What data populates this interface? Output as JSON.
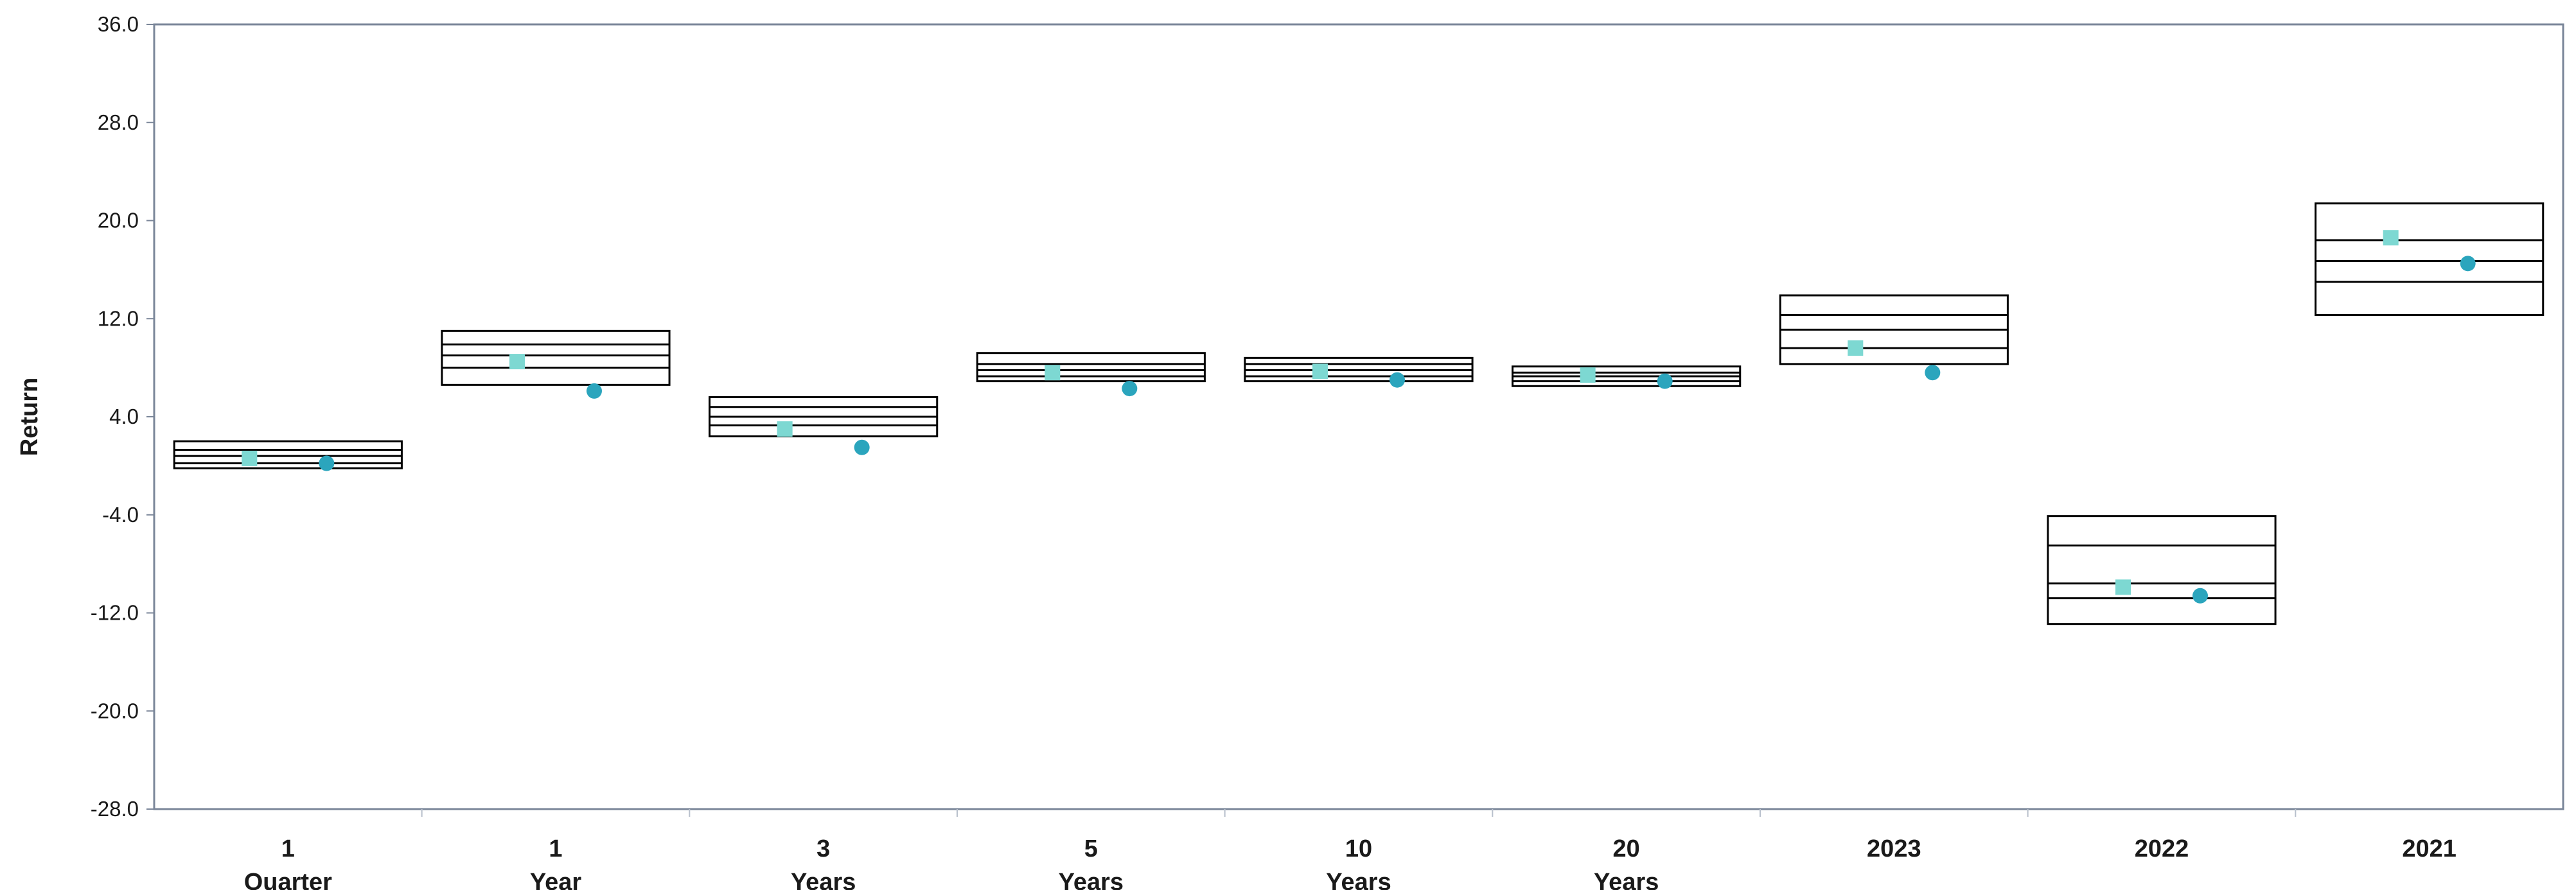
{
  "chart_data": {
    "type": "box",
    "ylabel": "Return",
    "ylim": [
      -28,
      36
    ],
    "yticks": [
      "36.0",
      "28.0",
      "20.0",
      "12.0",
      "4.0",
      "-4.0",
      "-12.0",
      "-20.0",
      "-28.0"
    ],
    "ytick_values": [
      36,
      28,
      20,
      12,
      4,
      -4,
      -12,
      -20,
      -28
    ],
    "grid": false,
    "categories": [
      [
        "1",
        "Quarter"
      ],
      [
        "1",
        "Year"
      ],
      [
        "3",
        "Years"
      ],
      [
        "5",
        "Years"
      ],
      [
        "10",
        "Years"
      ],
      [
        "20",
        "Years"
      ],
      [
        "2023"
      ],
      [
        "2022"
      ],
      [
        "2021"
      ]
    ],
    "boxes": [
      {
        "p5": -0.2,
        "p25": 0.2,
        "median": 0.8,
        "p75": 1.3,
        "p95": 2.0
      },
      {
        "p5": 6.6,
        "p25": 8.0,
        "median": 9.0,
        "p75": 9.9,
        "p95": 11.0
      },
      {
        "p5": 2.4,
        "p25": 3.3,
        "median": 4.0,
        "p75": 4.8,
        "p95": 5.6
      },
      {
        "p5": 6.9,
        "p25": 7.3,
        "median": 7.8,
        "p75": 8.3,
        "p95": 9.2
      },
      {
        "p5": 6.9,
        "p25": 7.3,
        "median": 7.8,
        "p75": 8.3,
        "p95": 8.8
      },
      {
        "p5": 6.5,
        "p25": 6.9,
        "median": 7.3,
        "p75": 7.6,
        "p95": 8.1
      },
      {
        "p5": 8.3,
        "p25": 9.6,
        "median": 11.1,
        "p75": 12.3,
        "p95": 13.9
      },
      {
        "p5": -12.9,
        "p25": -10.8,
        "median": -9.6,
        "p75": -6.5,
        "p95": -4.1
      },
      {
        "p5": 12.3,
        "p25": 15.0,
        "median": 16.7,
        "p75": 18.4,
        "p95": 21.4
      }
    ],
    "series": [
      {
        "marker": "square",
        "color": "#7dd8d2",
        "values": [
          0.6,
          8.5,
          3.0,
          7.6,
          7.7,
          7.4,
          9.6,
          -9.9,
          18.6
        ]
      },
      {
        "marker": "circle",
        "color": "#2ba5bd",
        "values": [
          0.2,
          6.1,
          1.5,
          6.3,
          7.0,
          6.9,
          7.6,
          -10.6,
          16.5
        ]
      }
    ],
    "colors": {
      "axis": "#7a8699",
      "box_stroke": "#000000"
    }
  }
}
